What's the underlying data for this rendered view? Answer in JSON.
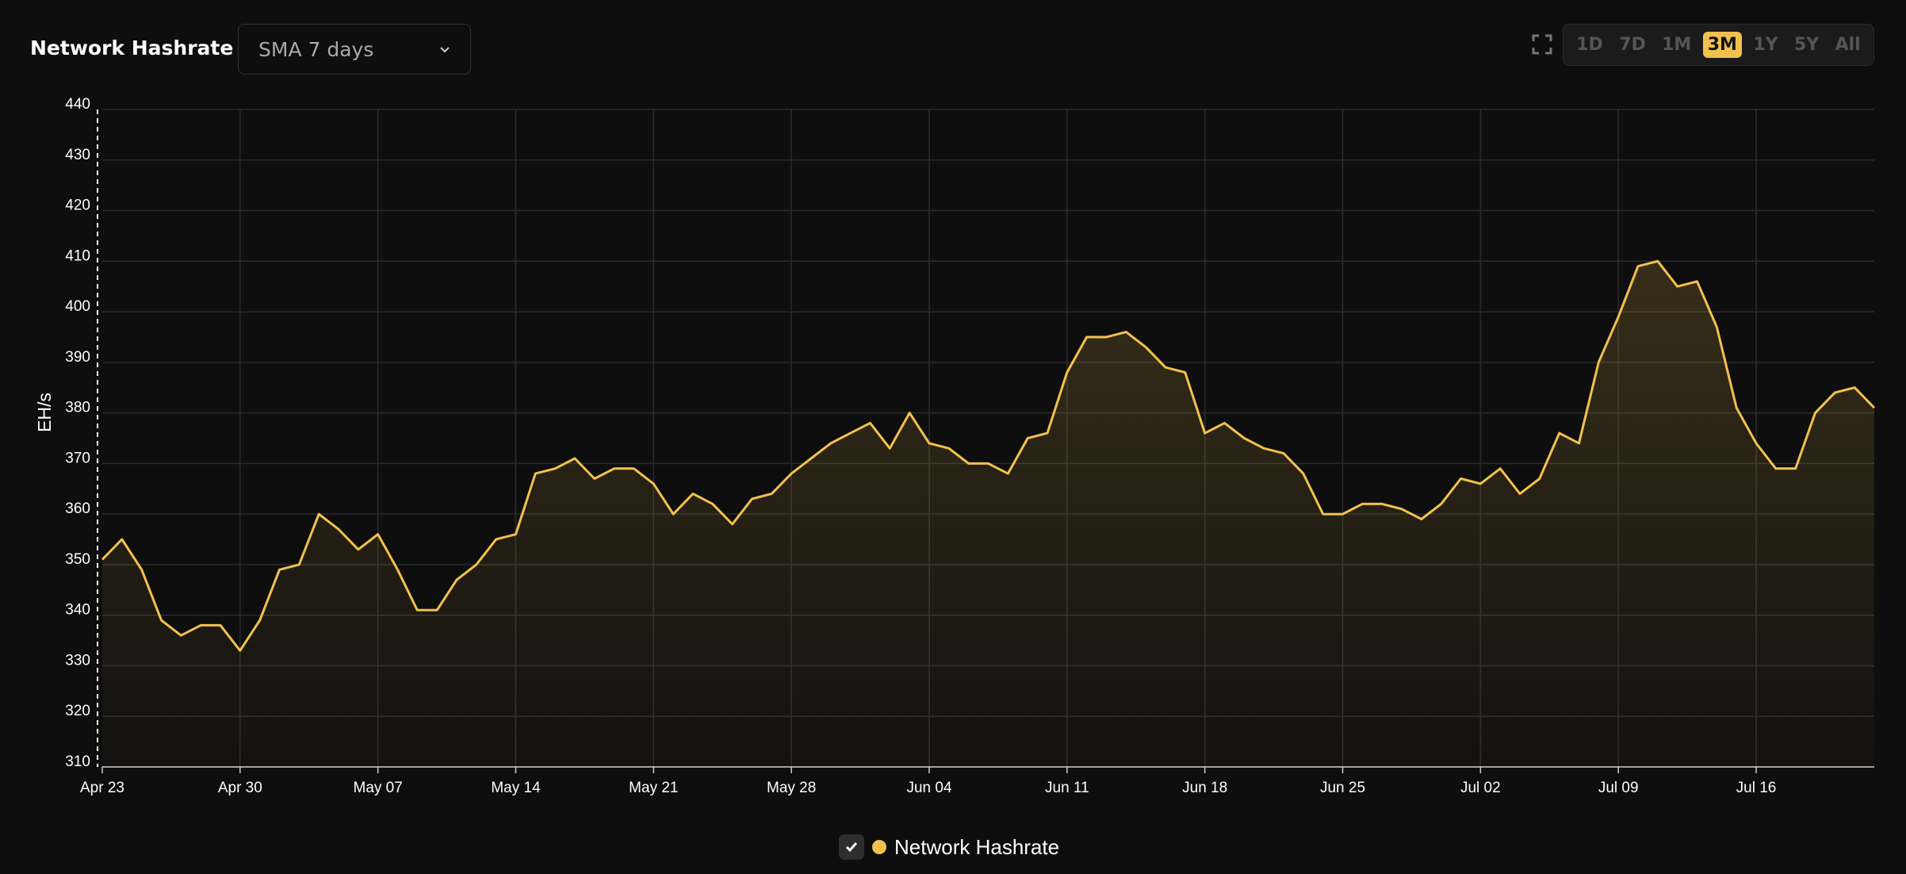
{
  "header": {
    "title": "Network Hashrate",
    "dropdown": "SMA 7 days",
    "ranges": [
      "1D",
      "7D",
      "1M",
      "3M",
      "1Y",
      "5Y",
      "All"
    ],
    "active_range": 3
  },
  "chart_data": {
    "type": "area",
    "y_label": "EH/s",
    "categories": [
      "Apr 23",
      null,
      null,
      null,
      null,
      null,
      null,
      "Apr 30",
      null,
      null,
      null,
      null,
      null,
      null,
      "May 07",
      null,
      null,
      null,
      null,
      null,
      null,
      "May 14",
      null,
      null,
      null,
      null,
      null,
      null,
      "May 21",
      null,
      null,
      null,
      null,
      null,
      null,
      "May 28",
      null,
      null,
      null,
      null,
      null,
      null,
      "Jun 04",
      null,
      null,
      null,
      null,
      null,
      null,
      "Jun 11",
      null,
      null,
      null,
      null,
      null,
      null,
      "Jun 18",
      null,
      null,
      null,
      null,
      null,
      null,
      "Jun 25",
      null,
      null,
      null,
      null,
      null,
      null,
      "Jul 02",
      null,
      null,
      null,
      null,
      null,
      null,
      "Jul 09",
      null,
      null,
      null,
      null,
      null,
      null,
      "Jul 16",
      null,
      null,
      null,
      null,
      null,
      null
    ],
    "series": [
      {
        "name": "Network Hashrate",
        "color": "#f2c14e",
        "values": [
          351,
          355,
          349,
          339,
          336,
          338,
          338,
          333,
          339,
          349,
          350,
          360,
          357,
          353,
          356,
          349,
          341,
          341,
          347,
          350,
          355,
          356,
          368,
          369,
          371,
          367,
          369,
          369,
          366,
          360,
          364,
          362,
          358,
          363,
          364,
          368,
          371,
          374,
          376,
          378,
          373,
          380,
          374,
          373,
          370,
          370,
          368,
          375,
          376,
          388,
          395,
          395,
          396,
          393,
          389,
          388,
          376,
          378,
          375,
          373,
          372,
          368,
          360,
          360,
          362,
          362,
          361,
          359,
          362,
          367,
          366,
          369,
          364,
          367,
          376,
          374,
          390,
          399,
          409,
          410,
          405,
          406,
          397,
          381,
          374,
          369,
          369,
          380,
          384,
          385,
          381
        ]
      }
    ],
    "ylim": [
      310,
      440
    ],
    "yticks": [
      310,
      320,
      330,
      340,
      350,
      360,
      370,
      380,
      390,
      400,
      410,
      420,
      430,
      440
    ],
    "grid": true
  }
}
